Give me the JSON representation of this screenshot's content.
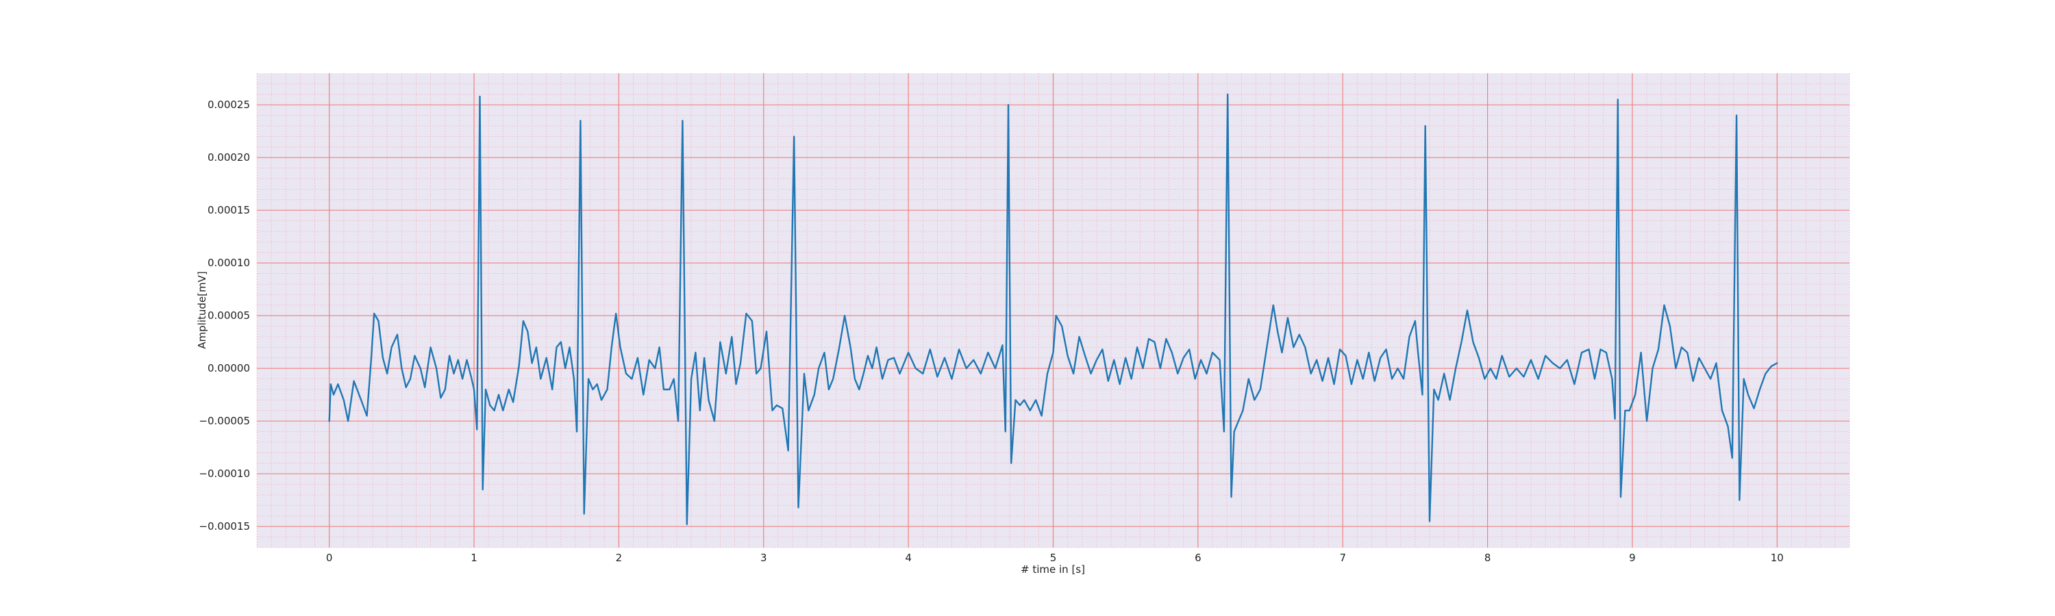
{
  "chart_data": {
    "type": "line",
    "title": "",
    "xlabel": "# time in [s]",
    "ylabel": "Amplitude[mV]",
    "xlim": [
      -0.5,
      10.5
    ],
    "ylim": [
      -0.00017,
      0.00028
    ],
    "x_ticks": [
      0,
      1,
      2,
      3,
      4,
      5,
      6,
      7,
      8,
      9,
      10
    ],
    "x_tick_labels": [
      "0",
      "1",
      "2",
      "3",
      "4",
      "5",
      "6",
      "7",
      "8",
      "9",
      "10"
    ],
    "y_ticks": [
      -0.00015,
      -0.0001,
      -5e-05,
      0,
      5e-05,
      0.0001,
      0.00015,
      0.0002,
      0.00025
    ],
    "y_tick_labels": [
      "−0.00015",
      "−0.00010",
      "−0.00005",
      "0.00000",
      "0.00005",
      "0.00010",
      "0.00015",
      "0.00020",
      "0.00025"
    ],
    "grid": true,
    "grid_minor": true,
    "colors": {
      "background": "#eae7f2",
      "major_grid": "#f08080",
      "minor_grid": "#f4b8c8",
      "line": "#1f77b4"
    },
    "series": [
      {
        "color": "#1f77b4",
        "points": [
          [
            0.0,
            -5e-05
          ],
          [
            0.01,
            -1.5e-05
          ],
          [
            0.03,
            -2.5e-05
          ],
          [
            0.06,
            -1.5e-05
          ],
          [
            0.1,
            -3e-05
          ],
          [
            0.13,
            -5e-05
          ],
          [
            0.17,
            -1.2e-05
          ],
          [
            0.22,
            -3e-05
          ],
          [
            0.26,
            -4.5e-05
          ],
          [
            0.29,
            1e-05
          ],
          [
            0.31,
            5.2e-05
          ],
          [
            0.34,
            4.5e-05
          ],
          [
            0.37,
            1e-05
          ],
          [
            0.4,
            -5e-06
          ],
          [
            0.43,
            2e-05
          ],
          [
            0.47,
            3.2e-05
          ],
          [
            0.5,
            0.0
          ],
          [
            0.53,
            -1.8e-05
          ],
          [
            0.56,
            -1e-05
          ],
          [
            0.59,
            1.2e-05
          ],
          [
            0.63,
            0.0
          ],
          [
            0.66,
            -1.8e-05
          ],
          [
            0.7,
            2e-05
          ],
          [
            0.74,
            0.0
          ],
          [
            0.77,
            -2.8e-05
          ],
          [
            0.8,
            -2e-05
          ],
          [
            0.83,
            1.2e-05
          ],
          [
            0.86,
            -5e-06
          ],
          [
            0.89,
            8e-06
          ],
          [
            0.92,
            -1e-05
          ],
          [
            0.95,
            8e-06
          ],
          [
            0.98,
            -8e-06
          ],
          [
            1.0,
            -2e-05
          ],
          [
            1.02,
            -5.8e-05
          ],
          [
            1.04,
            0.000258
          ],
          [
            1.06,
            -0.000115
          ],
          [
            1.08,
            -2e-05
          ],
          [
            1.11,
            -3.5e-05
          ],
          [
            1.14,
            -4e-05
          ],
          [
            1.17,
            -2.5e-05
          ],
          [
            1.2,
            -4e-05
          ],
          [
            1.24,
            -2e-05
          ],
          [
            1.27,
            -3.2e-05
          ],
          [
            1.31,
            2e-06
          ],
          [
            1.34,
            4.5e-05
          ],
          [
            1.37,
            3.5e-05
          ],
          [
            1.4,
            5e-06
          ],
          [
            1.43,
            2e-05
          ],
          [
            1.46,
            -1e-05
          ],
          [
            1.5,
            1e-05
          ],
          [
            1.54,
            -2e-05
          ],
          [
            1.57,
            2e-05
          ],
          [
            1.6,
            2.5e-05
          ],
          [
            1.63,
            0.0
          ],
          [
            1.66,
            2e-05
          ],
          [
            1.69,
            -1e-05
          ],
          [
            1.71,
            -6e-05
          ],
          [
            1.735,
            0.000235
          ],
          [
            1.76,
            -0.000138
          ],
          [
            1.79,
            -1e-05
          ],
          [
            1.82,
            -2e-05
          ],
          [
            1.85,
            -1.5e-05
          ],
          [
            1.88,
            -3e-05
          ],
          [
            1.92,
            -2e-05
          ],
          [
            1.95,
            2e-05
          ],
          [
            1.98,
            5.2e-05
          ],
          [
            2.01,
            2e-05
          ],
          [
            2.05,
            -5e-06
          ],
          [
            2.09,
            -1e-05
          ],
          [
            2.13,
            1e-05
          ],
          [
            2.17,
            -2.5e-05
          ],
          [
            2.21,
            8e-06
          ],
          [
            2.25,
            0.0
          ],
          [
            2.28,
            2e-05
          ],
          [
            2.31,
            -2e-05
          ],
          [
            2.35,
            -2e-05
          ],
          [
            2.38,
            -1e-05
          ],
          [
            2.41,
            -5e-05
          ],
          [
            2.44,
            0.000235
          ],
          [
            2.47,
            -0.000148
          ],
          [
            2.5,
            -1e-05
          ],
          [
            2.53,
            1.5e-05
          ],
          [
            2.56,
            -4e-05
          ],
          [
            2.59,
            1e-05
          ],
          [
            2.62,
            -3e-05
          ],
          [
            2.66,
            -5e-05
          ],
          [
            2.7,
            2.5e-05
          ],
          [
            2.74,
            -5e-06
          ],
          [
            2.78,
            3e-05
          ],
          [
            2.81,
            -1.5e-05
          ],
          [
            2.84,
            5e-06
          ],
          [
            2.88,
            5.2e-05
          ],
          [
            2.92,
            4.5e-05
          ],
          [
            2.95,
            -5e-06
          ],
          [
            2.98,
            0.0
          ],
          [
            3.02,
            3.5e-05
          ],
          [
            3.06,
            -4e-05
          ],
          [
            3.09,
            -3.5e-05
          ],
          [
            3.13,
            -3.8e-05
          ],
          [
            3.17,
            -7.8e-05
          ],
          [
            3.21,
            0.00022
          ],
          [
            3.24,
            -0.000132
          ],
          [
            3.28,
            -5e-06
          ],
          [
            3.31,
            -4e-05
          ],
          [
            3.35,
            -2.5e-05
          ],
          [
            3.38,
            0.0
          ],
          [
            3.42,
            1.5e-05
          ],
          [
            3.45,
            -2e-05
          ],
          [
            3.48,
            -1e-05
          ],
          [
            3.52,
            1.8e-05
          ],
          [
            3.56,
            5e-05
          ],
          [
            3.6,
            2e-05
          ],
          [
            3.63,
            -1e-05
          ],
          [
            3.66,
            -2e-05
          ],
          [
            3.69,
            -5e-06
          ],
          [
            3.72,
            1.2e-05
          ],
          [
            3.75,
            0.0
          ],
          [
            3.78,
            2e-05
          ],
          [
            3.82,
            -1e-05
          ],
          [
            3.86,
            8e-06
          ],
          [
            3.9,
            1e-05
          ],
          [
            3.94,
            -5e-06
          ],
          [
            4.0,
            1.5e-05
          ],
          [
            4.05,
            0.0
          ],
          [
            4.1,
            -5e-06
          ],
          [
            4.15,
            1.8e-05
          ],
          [
            4.2,
            -8e-06
          ],
          [
            4.25,
            1e-05
          ],
          [
            4.3,
            -1e-05
          ],
          [
            4.35,
            1.8e-05
          ],
          [
            4.4,
            0.0
          ],
          [
            4.45,
            8e-06
          ],
          [
            4.5,
            -5e-06
          ],
          [
            4.55,
            1.5e-05
          ],
          [
            4.6,
            0.0
          ],
          [
            4.65,
            2.2e-05
          ],
          [
            4.67,
            -6e-05
          ],
          [
            4.69,
            0.00025
          ],
          [
            4.71,
            -9e-05
          ],
          [
            4.74,
            -3e-05
          ],
          [
            4.77,
            -3.5e-05
          ],
          [
            4.8,
            -3e-05
          ],
          [
            4.84,
            -4e-05
          ],
          [
            4.88,
            -3e-05
          ],
          [
            4.92,
            -4.5e-05
          ],
          [
            4.96,
            -5e-06
          ],
          [
            5.0,
            1.5e-05
          ],
          [
            5.02,
            5e-05
          ],
          [
            5.06,
            4e-05
          ],
          [
            5.1,
            1.2e-05
          ],
          [
            5.14,
            -5e-06
          ],
          [
            5.18,
            3e-05
          ],
          [
            5.22,
            1.2e-05
          ],
          [
            5.26,
            -5e-06
          ],
          [
            5.3,
            8e-06
          ],
          [
            5.34,
            1.8e-05
          ],
          [
            5.38,
            -1.2e-05
          ],
          [
            5.42,
            8e-06
          ],
          [
            5.46,
            -1.5e-05
          ],
          [
            5.5,
            1e-05
          ],
          [
            5.54,
            -1e-05
          ],
          [
            5.58,
            2e-05
          ],
          [
            5.62,
            0.0
          ],
          [
            5.66,
            2.8e-05
          ],
          [
            5.7,
            2.5e-05
          ],
          [
            5.74,
            0.0
          ],
          [
            5.78,
            2.8e-05
          ],
          [
            5.82,
            1.5e-05
          ],
          [
            5.86,
            -5e-06
          ],
          [
            5.9,
            1e-05
          ],
          [
            5.94,
            1.8e-05
          ],
          [
            5.98,
            -1e-05
          ],
          [
            6.02,
            8e-06
          ],
          [
            6.06,
            -5e-06
          ],
          [
            6.1,
            1.5e-05
          ],
          [
            6.15,
            8e-06
          ],
          [
            6.18,
            -6e-05
          ],
          [
            6.205,
            0.00026
          ],
          [
            6.23,
            -0.000122
          ],
          [
            6.25,
            -6e-05
          ],
          [
            6.28,
            -5e-05
          ],
          [
            6.31,
            -4e-05
          ],
          [
            6.35,
            -1e-05
          ],
          [
            6.39,
            -3e-05
          ],
          [
            6.43,
            -2e-05
          ],
          [
            6.47,
            1.5e-05
          ],
          [
            6.52,
            6e-05
          ],
          [
            6.55,
            3.5e-05
          ],
          [
            6.58,
            1.5e-05
          ],
          [
            6.62,
            4.8e-05
          ],
          [
            6.66,
            2e-05
          ],
          [
            6.7,
            3.2e-05
          ],
          [
            6.74,
            2e-05
          ],
          [
            6.78,
            -5e-06
          ],
          [
            6.82,
            8e-06
          ],
          [
            6.86,
            -1.2e-05
          ],
          [
            6.9,
            1e-05
          ],
          [
            6.94,
            -1.5e-05
          ],
          [
            6.98,
            1.8e-05
          ],
          [
            7.02,
            1.2e-05
          ],
          [
            7.06,
            -1.5e-05
          ],
          [
            7.1,
            8e-06
          ],
          [
            7.14,
            -1e-05
          ],
          [
            7.18,
            1.5e-05
          ],
          [
            7.22,
            -1.2e-05
          ],
          [
            7.26,
            1e-05
          ],
          [
            7.3,
            1.8e-05
          ],
          [
            7.34,
            -1e-05
          ],
          [
            7.38,
            0.0
          ],
          [
            7.42,
            -1e-05
          ],
          [
            7.46,
            3e-05
          ],
          [
            7.5,
            4.5e-05
          ],
          [
            7.52,
            1.5e-05
          ],
          [
            7.55,
            -2.5e-05
          ],
          [
            7.57,
            0.00023
          ],
          [
            7.6,
            -0.000145
          ],
          [
            7.63,
            -2e-05
          ],
          [
            7.66,
            -3e-05
          ],
          [
            7.7,
            -5e-06
          ],
          [
            7.74,
            -3e-05
          ],
          [
            7.78,
            0.0
          ],
          [
            7.82,
            2.5e-05
          ],
          [
            7.86,
            5.5e-05
          ],
          [
            7.9,
            2.5e-05
          ],
          [
            7.94,
            1e-05
          ],
          [
            7.98,
            -1e-05
          ],
          [
            8.02,
            0.0
          ],
          [
            8.06,
            -1e-05
          ],
          [
            8.1,
            1.2e-05
          ],
          [
            8.15,
            -8e-06
          ],
          [
            8.2,
            0.0
          ],
          [
            8.25,
            -8e-06
          ],
          [
            8.3,
            8e-06
          ],
          [
            8.35,
            -1e-05
          ],
          [
            8.4,
            1.2e-05
          ],
          [
            8.45,
            5e-06
          ],
          [
            8.5,
            0.0
          ],
          [
            8.55,
            8e-06
          ],
          [
            8.6,
            -1.5e-05
          ],
          [
            8.65,
            1.5e-05
          ],
          [
            8.7,
            1.8e-05
          ],
          [
            8.74,
            -1e-05
          ],
          [
            8.78,
            1.8e-05
          ],
          [
            8.82,
            1.5e-05
          ],
          [
            8.86,
            -1e-05
          ],
          [
            8.88,
            -4.8e-05
          ],
          [
            8.9,
            0.000255
          ],
          [
            8.92,
            -0.000122
          ],
          [
            8.95,
            -4e-05
          ],
          [
            8.98,
            -4e-05
          ],
          [
            9.02,
            -2.5e-05
          ],
          [
            9.06,
            1.5e-05
          ],
          [
            9.1,
            -5e-05
          ],
          [
            9.14,
            0.0
          ],
          [
            9.18,
            1.8e-05
          ],
          [
            9.22,
            6e-05
          ],
          [
            9.26,
            4e-05
          ],
          [
            9.3,
            0.0
          ],
          [
            9.34,
            2e-05
          ],
          [
            9.38,
            1.5e-05
          ],
          [
            9.42,
            -1.2e-05
          ],
          [
            9.46,
            1e-05
          ],
          [
            9.5,
            0.0
          ],
          [
            9.54,
            -1e-05
          ],
          [
            9.58,
            5e-06
          ],
          [
            9.62,
            -4e-05
          ],
          [
            9.66,
            -5.5e-05
          ],
          [
            9.69,
            -8.5e-05
          ],
          [
            9.72,
            0.00024
          ],
          [
            9.74,
            -0.000125
          ],
          [
            9.77,
            -1e-05
          ],
          [
            9.8,
            -2.5e-05
          ],
          [
            9.84,
            -3.8e-05
          ],
          [
            9.88,
            -2e-05
          ],
          [
            9.92,
            -5e-06
          ],
          [
            9.96,
            2e-06
          ],
          [
            10.0,
            5e-06
          ]
        ]
      }
    ]
  }
}
